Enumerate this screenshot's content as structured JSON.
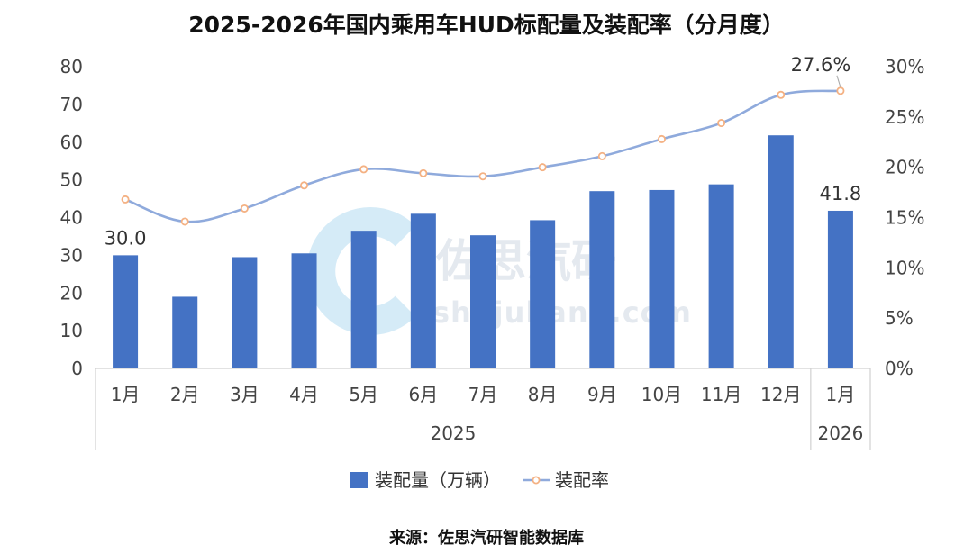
{
  "chart_data": {
    "type": "bar+line",
    "title": "2025-2026年国内乘用车HUD标配量及装配率（分月度）",
    "categories": [
      "1月",
      "2月",
      "3月",
      "4月",
      "5月",
      "6月",
      "7月",
      "8月",
      "9月",
      "10月",
      "11月",
      "12月",
      "1月"
    ],
    "year_groups": [
      {
        "label": "2025",
        "count": 12
      },
      {
        "label": "2026",
        "count": 1
      }
    ],
    "series": [
      {
        "name": "装配量（万辆）",
        "kind": "bar",
        "axis": "left",
        "color": "#4472c4",
        "values": [
          30.0,
          19.0,
          29.5,
          30.5,
          36.5,
          41.0,
          35.3,
          39.3,
          47.0,
          47.3,
          48.8,
          61.8,
          41.8
        ]
      },
      {
        "name": "装配率",
        "kind": "line",
        "axis": "right",
        "color": "#8faadc",
        "marker_color": "#f4b183",
        "values": [
          16.8,
          14.6,
          15.9,
          18.2,
          19.8,
          19.4,
          19.1,
          20.0,
          21.1,
          22.8,
          24.4,
          27.2,
          27.6
        ]
      }
    ],
    "data_labels": [
      {
        "series": 0,
        "index": 0,
        "text": "30.0"
      },
      {
        "series": 0,
        "index": 12,
        "text": "41.8"
      },
      {
        "series": 1,
        "index": 12,
        "text": "27.6%"
      }
    ],
    "y_left": {
      "min": 0,
      "max": 80,
      "step": 10,
      "ticks": [
        "0",
        "10",
        "20",
        "30",
        "40",
        "50",
        "60",
        "70",
        "80"
      ]
    },
    "y_right": {
      "min": 0,
      "max": 30,
      "step": 5,
      "ticks": [
        "0%",
        "5%",
        "10%",
        "15%",
        "20%",
        "25%",
        "30%"
      ]
    },
    "grid": false,
    "legend_position": "bottom"
  },
  "watermark": {
    "brand": "佐思汽研",
    "site": "shujubang.com"
  },
  "source": "来源：佐思汽研智能数据库"
}
